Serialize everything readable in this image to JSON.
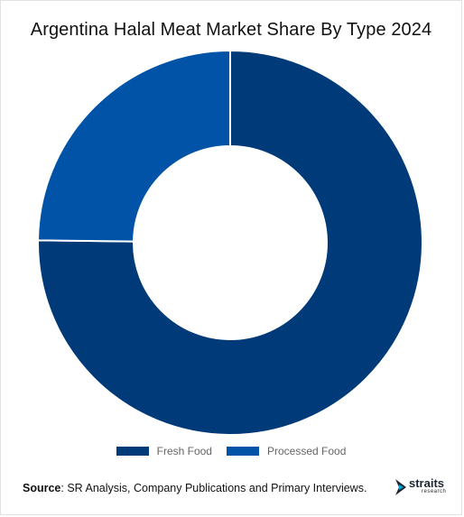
{
  "title": "Argentina Halal Meat Market Share By Type 2024",
  "chart_data": {
    "type": "pie",
    "title": "Argentina Halal Meat Market Share By Type 2024",
    "style": "donut",
    "categories": [
      "Fresh Food",
      "Processed Food"
    ],
    "values": [
      75.2,
      24.8
    ],
    "colors": [
      "#003a78",
      "#0053a6"
    ],
    "legend_position": "bottom"
  },
  "source": {
    "label": "Source",
    "text": "SR Analysis, Company Publications and Primary Interviews."
  },
  "brand": {
    "name": "straits",
    "tagline": "research"
  }
}
